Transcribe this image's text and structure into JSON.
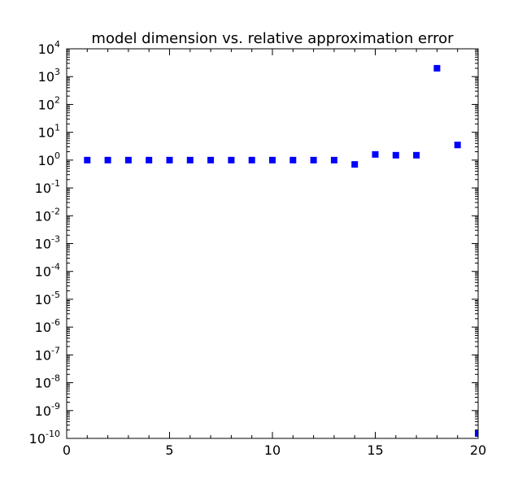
{
  "chart_data": {
    "type": "scatter",
    "title": "model dimension vs. relative approximation error",
    "xlabel": "",
    "ylabel": "",
    "xlim": [
      0,
      20
    ],
    "ylim": [
      1e-10,
      10000
    ],
    "yscale": "log",
    "grid": false,
    "marker": "square",
    "color": "#0000ff",
    "x_ticks": [
      0,
      5,
      10,
      15,
      20
    ],
    "y_tick_exponents": [
      4,
      3,
      2,
      1,
      0,
      -1,
      -2,
      -3,
      -4,
      -5,
      -6,
      -7,
      -8,
      -9,
      -10
    ],
    "x": [
      1,
      2,
      3,
      4,
      5,
      6,
      7,
      8,
      9,
      10,
      11,
      12,
      13,
      14,
      15,
      16,
      17,
      18,
      19,
      20
    ],
    "y": [
      1.0,
      1.0,
      1.0,
      1.0,
      1.0,
      1.0,
      1.0,
      1.0,
      1.0,
      1.0,
      1.0,
      1.0,
      1.0,
      0.7,
      1.6,
      1.5,
      1.5,
      2000,
      3.5,
      1.5e-10
    ]
  }
}
